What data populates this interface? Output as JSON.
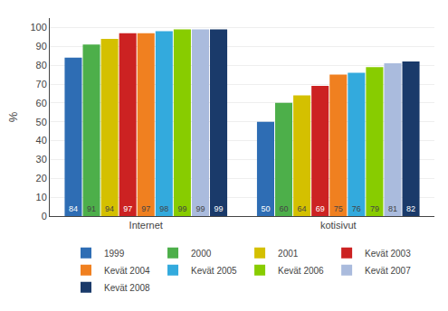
{
  "chart_data": {
    "type": "bar",
    "categories": [
      "Internet",
      "kotisivut"
    ],
    "series": [
      {
        "name": "1999",
        "color": "#2E6DB4",
        "values": [
          84,
          50
        ]
      },
      {
        "name": "2000",
        "color": "#4DAF4A",
        "values": [
          91,
          60
        ]
      },
      {
        "name": "2001",
        "color": "#D4C000",
        "values": [
          94,
          64
        ]
      },
      {
        "name": "Kevät 2003",
        "color": "#CC2222",
        "values": [
          97,
          69
        ]
      },
      {
        "name": "Kevät 2004",
        "color": "#F08020",
        "values": [
          97,
          75
        ]
      },
      {
        "name": "Kevät 2005",
        "color": "#33AADD",
        "values": [
          98,
          76
        ]
      },
      {
        "name": "Kevät 2006",
        "color": "#88CC00",
        "values": [
          99,
          79
        ]
      },
      {
        "name": "Kevät 2007",
        "color": "#AABBDD",
        "values": [
          99,
          81
        ]
      },
      {
        "name": "Kevät 2008",
        "color": "#1A3A6A",
        "values": [
          99,
          82
        ]
      }
    ],
    "ylabel": "%",
    "ylim": [
      0,
      105
    ],
    "yticks": [
      0,
      10,
      20,
      30,
      40,
      50,
      60,
      70,
      80,
      90,
      100
    ],
    "grid": true,
    "legend": "bottom",
    "data_labels": true
  }
}
